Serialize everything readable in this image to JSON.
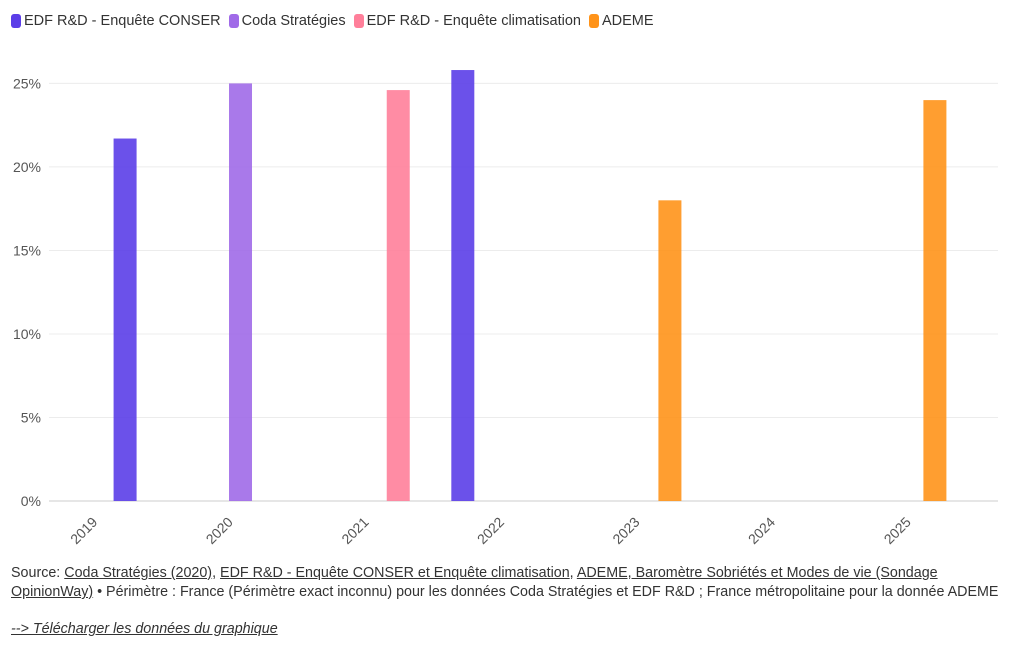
{
  "chart_data": {
    "type": "bar",
    "x": [
      "2019",
      "2020",
      "2021",
      "2022",
      "2023",
      "2024",
      "2025"
    ],
    "series": [
      {
        "name": "EDF R&D - Enquête CONSER",
        "color": "#5b3ee8",
        "points": [
          {
            "x": "2019-03-25",
            "y": 21.7
          },
          {
            "x": "2021-09-20",
            "y": 25.8
          }
        ]
      },
      {
        "name": "Coda Stratégies",
        "color": "#a06ae8",
        "points": [
          {
            "x": "2020-01-30",
            "y": 25.0
          }
        ]
      },
      {
        "name": "EDF R&D - Enquête climatisation",
        "color": "#ff7f9a",
        "points": [
          {
            "x": "2021-03-30",
            "y": 24.6
          }
        ]
      },
      {
        "name": "ADEME",
        "color": "#ff9319",
        "points": [
          {
            "x": "2023-04-01",
            "y": 18.0
          },
          {
            "x": "2025-03-15",
            "y": 24.0
          }
        ]
      }
    ],
    "y_ticks": [
      "0%",
      "5%",
      "10%",
      "15%",
      "20%",
      "25%"
    ],
    "ylim": [
      0,
      27
    ],
    "xlim": [
      "2018-09-01",
      "2025-09-01"
    ],
    "grid": true,
    "legend": "top-left"
  },
  "source": {
    "prefix": "Source: ",
    "link1": "Coda Stratégies (2020)",
    "sep1": ", ",
    "link2": "EDF R&D - Enquête CONSER et Enquête climatisation",
    "sep2": ", ",
    "link3": "ADEME, Baromètre Sobriétés et Modes de vie (Sondage OpinionWay)",
    "rest": " • Périmètre : France (Périmètre exact inconnu) pour les données Coda Stratégies et EDF R&D ; France métropolitaine pour la donnée ADEME"
  },
  "download": "--> Télécharger les données du graphique"
}
